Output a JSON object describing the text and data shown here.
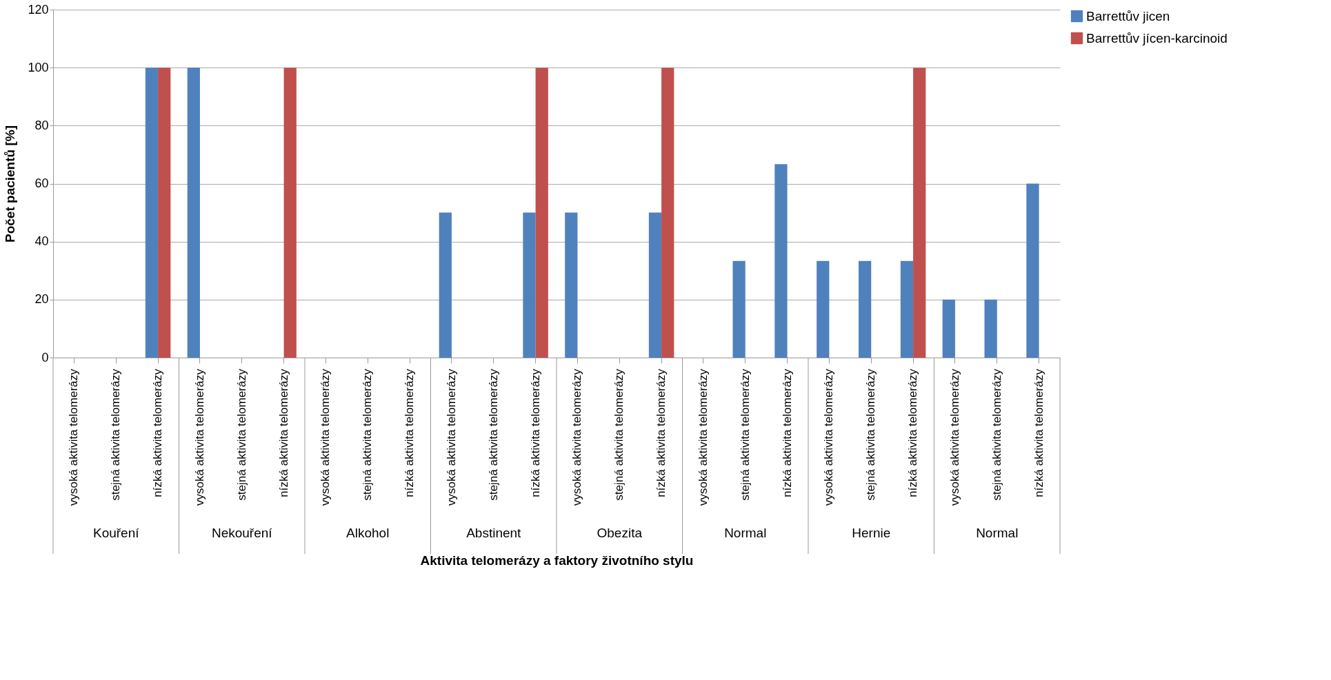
{
  "chart_data": {
    "type": "bar",
    "xlabel": "Aktivita telomerázy a faktory životního stylu",
    "ylabel": "Počet pacientů [%]",
    "categories": [
      "vysoká aktivita telomerázy",
      "stejná  aktivita telomerázy",
      "nízká  aktivita telomerázy",
      "vysoká  aktivita telomerázy",
      "stejná  aktivita telomerázy",
      "nízká aktivita telomerázy",
      "vysoká aktivita telomerázy",
      "stejná aktivita telomerázy",
      "nízká aktivita telomerázy",
      "vysoká aktivita telomerázy",
      "stejná aktivita telomerázy",
      "nízká aktivita telomerázy",
      "vysoká aktivita telomerázy",
      "stejná aktivita telomerázy",
      "nízká aktivita telomerázy",
      "vysoká aktivita telomerázy",
      "stejná aktivita telomerázy",
      "nízká aktivita telomerázy",
      "vysoká aktivita telomerázy",
      "stejná aktivita telomerázy",
      "nízká aktivita telomerázy",
      "vysoká aktivita telomerázy",
      "stejná aktivita telomerázy",
      "nízká aktivita telomerázy"
    ],
    "annotations": [
      "Kouření",
      "Nekouření",
      "Alkohol",
      "Abstinent",
      "Obezita",
      "Normal",
      "Hernie",
      "Normal"
    ],
    "series": [
      {
        "name": "Barrettův jicen",
        "color": "#4f81bd",
        "values": [
          0,
          0,
          100,
          100,
          0,
          0,
          0,
          0,
          0,
          50,
          0,
          50,
          50,
          0,
          50,
          0,
          33.3,
          66.7,
          33.3,
          33.3,
          33.3,
          20,
          20,
          60
        ]
      },
      {
        "name": "Barrettův jícen-karcinoid",
        "color": "#c0504d",
        "values": [
          0,
          0,
          100,
          0,
          0,
          100,
          0,
          0,
          0,
          0,
          0,
          100,
          0,
          0,
          100,
          0,
          0,
          0,
          0,
          0,
          100,
          0,
          0,
          0
        ]
      }
    ],
    "ylim": [
      0,
      120
    ],
    "yticks": [
      0,
      20,
      40,
      60,
      80,
      100,
      120
    ],
    "grid": "y",
    "legend": "right"
  }
}
